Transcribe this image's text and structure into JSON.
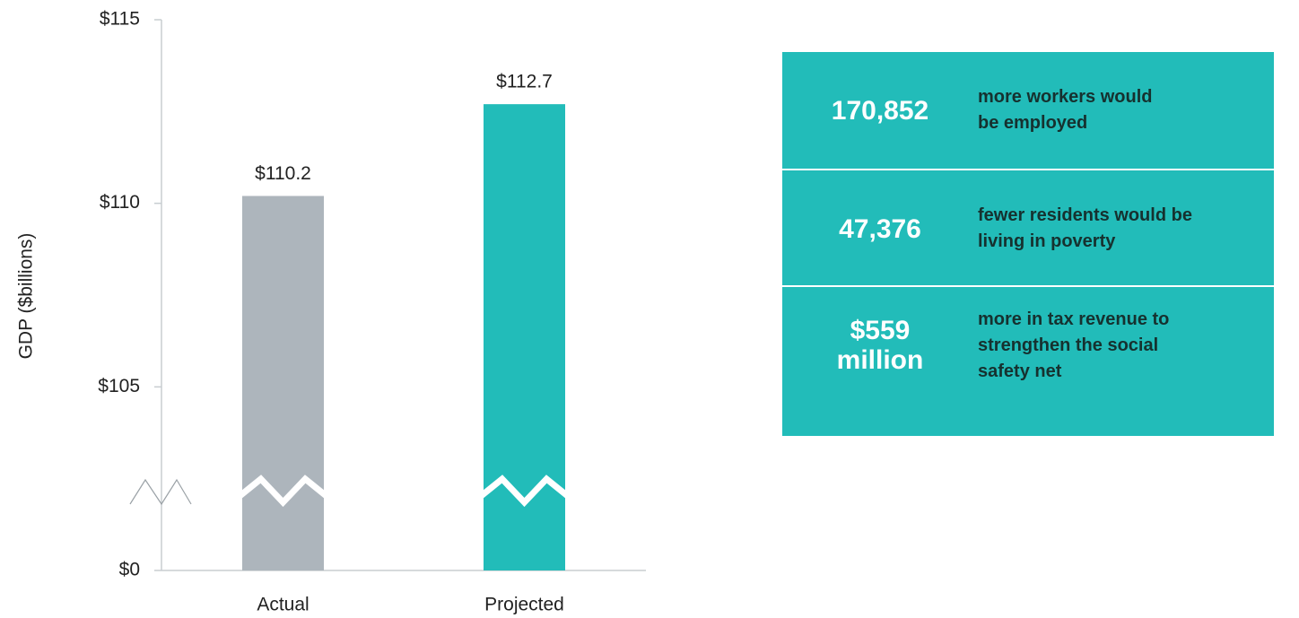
{
  "chart_data": {
    "type": "bar",
    "y_label": "GDP ($billions)",
    "categories": [
      "Actual",
      "Projected"
    ],
    "values": [
      110.2,
      112.7
    ],
    "value_labels": [
      "$110.2",
      "$112.7"
    ],
    "colors": [
      "#adb5bc",
      "#22bcb9"
    ],
    "ylim": [
      0,
      115
    ],
    "yticks": [
      {
        "value": 0,
        "label": "$0"
      },
      {
        "value": 105,
        "label": "$105"
      },
      {
        "value": 110,
        "label": "$110"
      },
      {
        "value": 115,
        "label": "$115"
      }
    ],
    "axis_break": true
  },
  "panel": {
    "rows": [
      {
        "figure": [
          "170,852"
        ],
        "description": [
          "more workers would",
          "be employed"
        ]
      },
      {
        "figure": [
          "47,376"
        ],
        "description": [
          "fewer residents would be",
          "living in poverty"
        ]
      },
      {
        "figure": [
          "$559",
          "million"
        ],
        "description": [
          "more in tax revenue to",
          "strengthen the social",
          "safety net"
        ]
      }
    ]
  }
}
